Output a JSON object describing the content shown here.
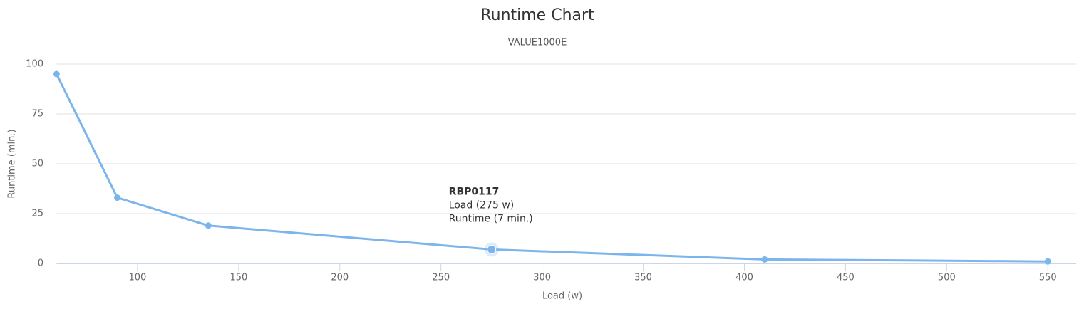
{
  "chart_data": {
    "type": "line",
    "title": "Runtime Chart",
    "subtitle": "VALUE1000E",
    "x_label": "Load (w)",
    "y_label": "Runtime (min.)",
    "x": [
      60,
      90,
      135,
      275,
      410,
      550
    ],
    "series": [
      {
        "name": "RBP0117",
        "color": "#7cb5ec",
        "values": [
          95,
          33,
          19,
          7,
          2,
          1
        ]
      }
    ],
    "xlim": [
      60,
      564
    ],
    "xticks": [
      100,
      150,
      200,
      250,
      300,
      350,
      400,
      450,
      500,
      550
    ],
    "ylim": [
      0,
      100
    ],
    "yticks": [
      0,
      25,
      50,
      75,
      100
    ],
    "grid": true,
    "active_point": 3,
    "tooltip": {
      "title": "RBP0117",
      "lines": [
        "Load (275 w)",
        "Runtime (7 min.)"
      ]
    }
  }
}
